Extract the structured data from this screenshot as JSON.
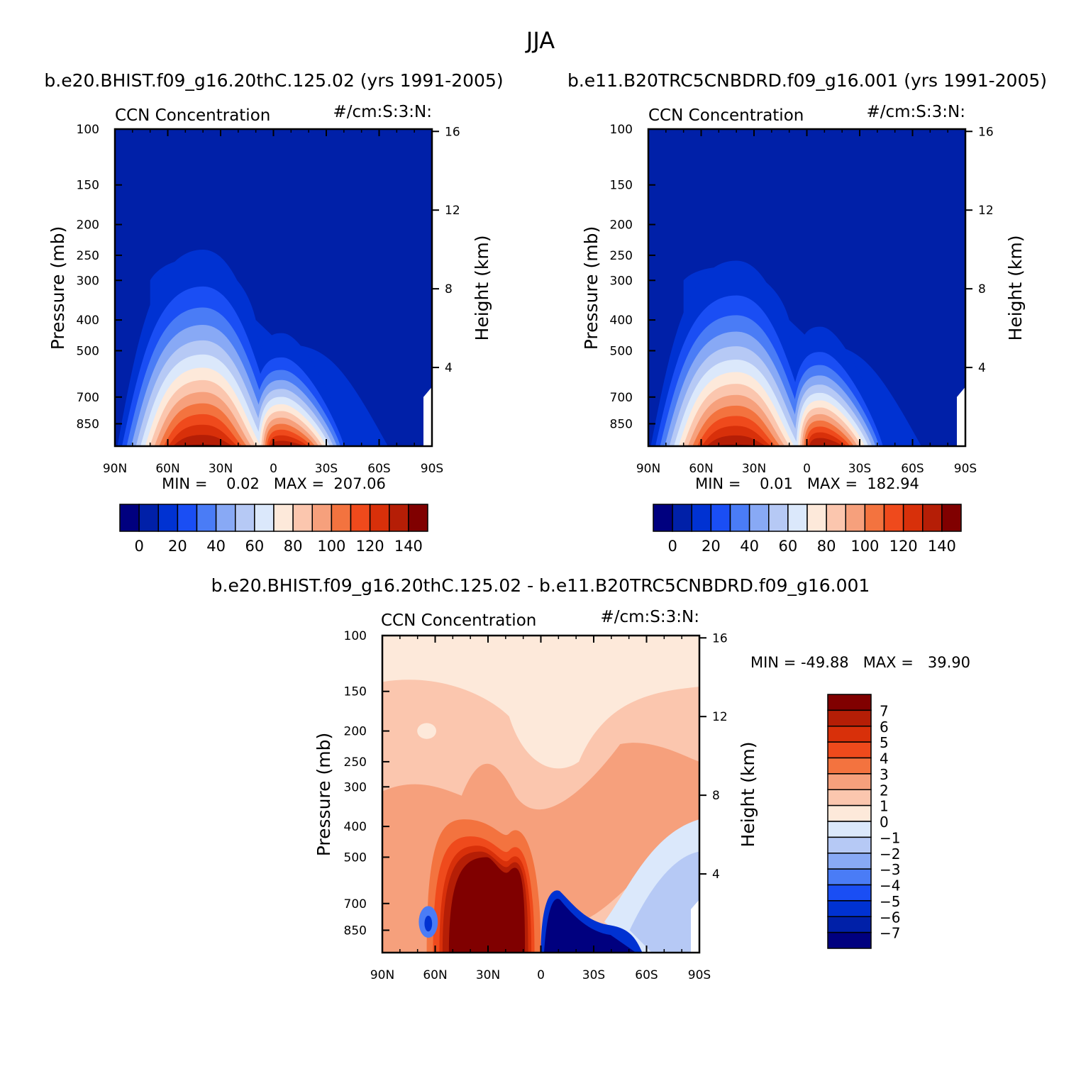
{
  "figure_title": "JJA",
  "colors": {
    "seq_levels": [
      "#00007f",
      "#0020a8",
      "#0032d2",
      "#1a4ef4",
      "#4a7cf6",
      "#88a9f5",
      "#b6c9f5",
      "#dbe8fb",
      "#fde9da",
      "#fbc6ae",
      "#f6a07c",
      "#f3733f",
      "#ef4a1c",
      "#d8300a",
      "#b51e06",
      "#800000"
    ],
    "diff_levels": [
      "#00007f",
      "#0020a8",
      "#0032d2",
      "#1a4ef4",
      "#4a7cf6",
      "#88a9f5",
      "#b6c9f5",
      "#dbe8fb",
      "#fde9da",
      "#fbc6ae",
      "#f6a07c",
      "#f3733f",
      "#ef4a1c",
      "#d8300a",
      "#b51e06",
      "#800000"
    ]
  },
  "chart_data": [
    {
      "type": "contour",
      "id": "panel-case",
      "title": "b.e20.BHIST.f09_g16.20thC.125.02 (yrs 1991-2005)",
      "left_label": "CCN Concentration",
      "right_label": "#/cm:S:3:N:",
      "xlabel": "",
      "ylabel": "Pressure (mb)",
      "y2label": "Height (km)",
      "x_ticks": [
        "90N",
        "60N",
        "30N",
        "0",
        "30S",
        "60S",
        "90S"
      ],
      "y_ticks": [
        "100",
        "150",
        "200",
        "250",
        "300",
        "400",
        "500",
        "700",
        "850"
      ],
      "y2_ticks": [
        "16",
        "12",
        "8",
        "4"
      ],
      "min_text": "MIN =    0.02   MAX =  207.06",
      "min": 0.02,
      "max": 207.06,
      "colorbar_labels": [
        "0",
        "20",
        "40",
        "60",
        "80",
        "100",
        "120",
        "140"
      ],
      "peaks": [
        {
          "lat": 40,
          "value": 207.06,
          "top_pressure": 240
        },
        {
          "lat": -5,
          "value": 150,
          "top_pressure": 440
        }
      ]
    },
    {
      "type": "contour",
      "id": "panel-control",
      "title": "b.e11.B20TRC5CNBDRD.f09_g16.001 (yrs 1991-2005)",
      "left_label": "CCN Concentration",
      "right_label": "#/cm:S:3:N:",
      "xlabel": "",
      "ylabel": "Pressure (mb)",
      "y2label": "Height (km)",
      "x_ticks": [
        "90N",
        "60N",
        "30N",
        "0",
        "30S",
        "60S",
        "90S"
      ],
      "y_ticks": [
        "100",
        "150",
        "200",
        "250",
        "300",
        "400",
        "500",
        "700",
        "850"
      ],
      "y2_ticks": [
        "16",
        "12",
        "8",
        "4"
      ],
      "min_text": "MIN =    0.01   MAX =  182.94",
      "min": 0.01,
      "max": 182.94,
      "colorbar_labels": [
        "0",
        "20",
        "40",
        "60",
        "80",
        "100",
        "120",
        "140"
      ],
      "peaks": [
        {
          "lat": 40,
          "value": 182.94,
          "top_pressure": 260
        },
        {
          "lat": -10,
          "value": 160,
          "top_pressure": 500
        }
      ]
    },
    {
      "type": "contour",
      "id": "panel-diff",
      "title": "b.e20.BHIST.f09_g16.20thC.125.02 - b.e11.B20TRC5CNBDRD.f09_g16.001",
      "left_label": "CCN Concentration",
      "right_label": "#/cm:S:3:N:",
      "xlabel": "",
      "ylabel": "Pressure (mb)",
      "y2label": "Height (km)",
      "x_ticks": [
        "90N",
        "60N",
        "30N",
        "0",
        "30S",
        "60S",
        "90S"
      ],
      "y_ticks": [
        "100",
        "150",
        "200",
        "250",
        "300",
        "400",
        "500",
        "700",
        "850"
      ],
      "y2_ticks": [
        "16",
        "12",
        "8",
        "4"
      ],
      "min_text": "MIN = -49.88   MAX =   39.90",
      "min": -49.88,
      "max": 39.9,
      "colorbar_labels": [
        "7",
        "6",
        "5",
        "4",
        "3",
        "2",
        "1",
        "0",
        "-1",
        "-2",
        "-3",
        "-4",
        "-5",
        "-6",
        "-7"
      ]
    }
  ]
}
